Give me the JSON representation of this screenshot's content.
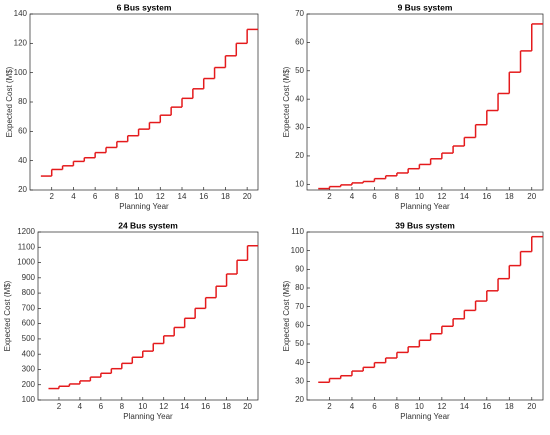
{
  "chart_data": [
    {
      "type": "step",
      "title": "6 Bus system",
      "xlabel": "Planning Year",
      "ylabel": "Expected Cost (M$)",
      "color": "#e41a1c",
      "x": [
        1,
        2,
        3,
        4,
        5,
        6,
        7,
        8,
        9,
        10,
        11,
        12,
        13,
        14,
        15,
        16,
        17,
        18,
        19,
        20
      ],
      "values": [
        29.5,
        34,
        36.5,
        39.5,
        42,
        45.5,
        49,
        53,
        57,
        61.5,
        66,
        71,
        76.5,
        82.5,
        89,
        96,
        103.5,
        111.5,
        120,
        129.5
      ],
      "xlim": [
        0,
        21
      ],
      "xticks": [
        2,
        4,
        6,
        8,
        10,
        12,
        14,
        16,
        18,
        20
      ],
      "ylim": [
        20,
        140
      ],
      "yticks": [
        20,
        40,
        60,
        80,
        100,
        120,
        140
      ]
    },
    {
      "type": "step",
      "title": "9 Bus system",
      "xlabel": "Planning Year",
      "ylabel": "Expected Cost (M$)",
      "color": "#e41a1c",
      "x": [
        1,
        2,
        3,
        4,
        5,
        6,
        7,
        8,
        9,
        10,
        11,
        12,
        13,
        14,
        15,
        16,
        17,
        18,
        19,
        20
      ],
      "values": [
        8.5,
        9.2,
        9.8,
        10.5,
        11,
        12,
        13,
        14,
        15.5,
        17,
        19,
        21,
        23.5,
        26.5,
        31,
        36,
        42,
        49.5,
        57,
        66.5
      ],
      "xlim": [
        0,
        21
      ],
      "xticks": [
        2,
        4,
        6,
        8,
        10,
        12,
        14,
        16,
        18,
        20
      ],
      "ylim": [
        8,
        70
      ],
      "yticks": [
        10,
        20,
        30,
        40,
        50,
        60,
        70
      ]
    },
    {
      "type": "step",
      "title": "24 Bus system",
      "xlabel": "Planning Year",
      "ylabel": "Expected Cost (M$)",
      "color": "#e41a1c",
      "x": [
        1,
        2,
        3,
        4,
        5,
        6,
        7,
        8,
        9,
        10,
        11,
        12,
        13,
        14,
        15,
        16,
        17,
        18,
        19,
        20
      ],
      "values": [
        175,
        190,
        205,
        225,
        250,
        275,
        305,
        340,
        380,
        420,
        470,
        520,
        575,
        635,
        700,
        770,
        845,
        925,
        1015,
        1110
      ],
      "xlim": [
        0,
        21
      ],
      "xticks": [
        2,
        4,
        6,
        8,
        10,
        12,
        14,
        16,
        18,
        20
      ],
      "ylim": [
        100,
        1200
      ],
      "yticks": [
        100,
        200,
        300,
        400,
        500,
        600,
        700,
        800,
        900,
        1000,
        1100,
        1200
      ]
    },
    {
      "type": "step",
      "title": "39 Bus system",
      "xlabel": "Planning Year",
      "ylabel": "Expected Cost (M$)",
      "color": "#e41a1c",
      "x": [
        1,
        2,
        3,
        4,
        5,
        6,
        7,
        8,
        9,
        10,
        11,
        12,
        13,
        14,
        15,
        16,
        17,
        18,
        19,
        20
      ],
      "values": [
        29.5,
        31.5,
        33,
        35.5,
        37.5,
        40,
        42.5,
        45.5,
        48.5,
        52,
        55.5,
        59.5,
        63.5,
        68,
        73,
        78.5,
        85,
        92,
        99.5,
        107.5
      ],
      "xlim": [
        0,
        21
      ],
      "xticks": [
        2,
        4,
        6,
        8,
        10,
        12,
        14,
        16,
        18,
        20
      ],
      "ylim": [
        20,
        110
      ],
      "yticks": [
        20,
        30,
        40,
        50,
        60,
        70,
        80,
        90,
        100,
        110
      ]
    }
  ]
}
